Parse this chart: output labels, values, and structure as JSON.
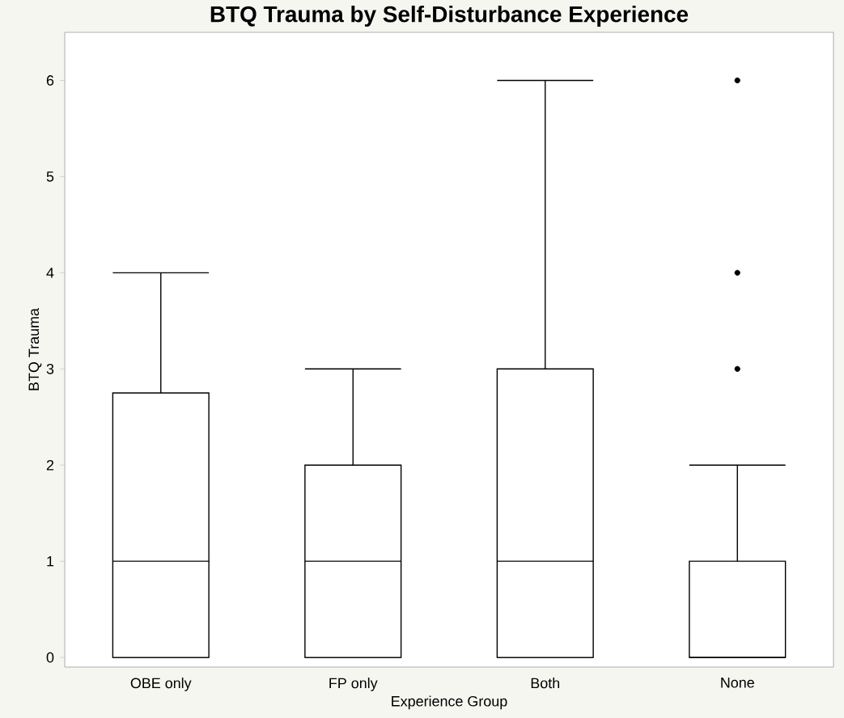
{
  "chart_data": {
    "type": "box",
    "title": "BTQ Trauma by Self-Disturbance Experience",
    "xlabel": "Experience Group",
    "ylabel": "BTQ Trauma",
    "categories": [
      "OBE only",
      "FP only",
      "Both",
      "None"
    ],
    "boxes": [
      {
        "low": 0,
        "q1": 0,
        "median": 1,
        "q3": 2.75,
        "high": 4
      },
      {
        "low": 0,
        "q1": 0,
        "median": 1,
        "q3": 2,
        "high": 3
      },
      {
        "low": 0,
        "q1": 0,
        "median": 1,
        "q3": 3,
        "high": 6
      },
      {
        "low": 0,
        "q1": 0,
        "median": 0,
        "q3": 1,
        "high": 2,
        "outliers": [
          3,
          4,
          6
        ]
      }
    ],
    "color": "#000000",
    "ylim": [
      -0.1,
      6.5
    ],
    "yticks": [
      0,
      1,
      2,
      3,
      4,
      5,
      6
    ],
    "grid": false
  }
}
